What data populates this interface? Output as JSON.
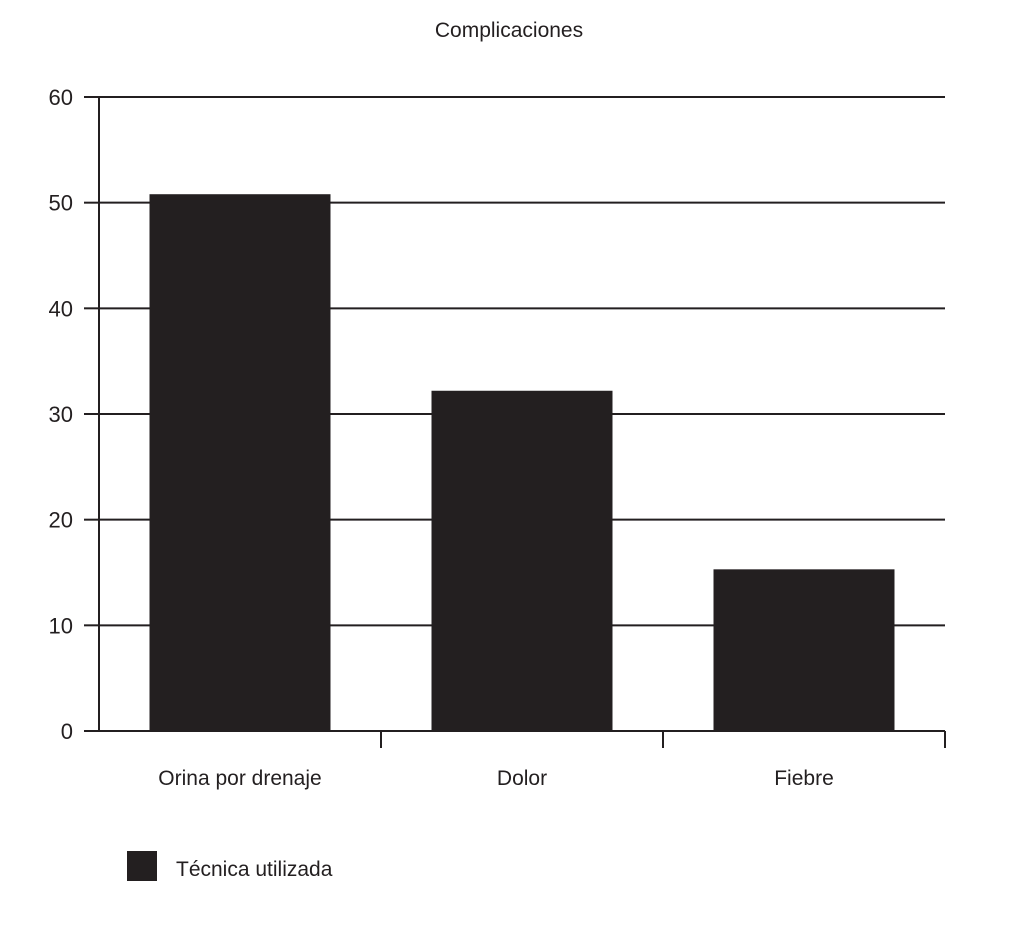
{
  "chart_data": {
    "type": "bar",
    "title": "Complicaciones",
    "xlabel": "",
    "ylabel": "",
    "categories": [
      "Orina por drenaje",
      "Dolor",
      "Fiebre"
    ],
    "series": [
      {
        "name": "Técnica utilizada",
        "values": [
          50.8,
          32.2,
          15.3
        ],
        "color": "#231f20"
      }
    ],
    "ylim": [
      0,
      60
    ],
    "yticks": [
      0,
      10,
      20,
      30,
      40,
      50,
      60
    ],
    "grid": true,
    "legend_position": "bottom-left"
  }
}
